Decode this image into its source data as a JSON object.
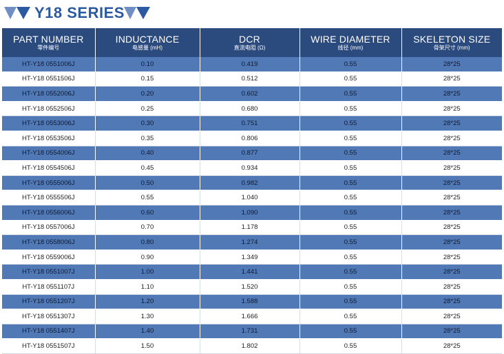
{
  "header": {
    "title": "Y18 SERIES"
  },
  "colors": {
    "accent": "#2c5aa0",
    "header_bg": "#2b4a7e",
    "row_blue": "#5179b5"
  },
  "table": {
    "columns": [
      {
        "en": "PART NUMBER",
        "cn": "零件编号"
      },
      {
        "en": "INDUCTANCE",
        "cn": "电感量 (mH)"
      },
      {
        "en": "DCR",
        "cn": "直流电阻 (Ω)"
      },
      {
        "en": "WIRE DIAMETER",
        "cn": "线径 (mm)"
      },
      {
        "en": "SKELETON SIZE",
        "cn": "骨架尺寸 (mm)"
      }
    ],
    "rows": [
      [
        "HT-Y18 0551006J",
        "0.10",
        "0.419",
        "0.55",
        "28*25"
      ],
      [
        "HT-Y18 0551506J",
        "0.15",
        "0.512",
        "0.55",
        "28*25"
      ],
      [
        "HT-Y18 0552006J",
        "0.20",
        "0.602",
        "0.55",
        "28*25"
      ],
      [
        "HT-Y18 0552506J",
        "0.25",
        "0.680",
        "0.55",
        "28*25"
      ],
      [
        "HT-Y18 0553006J",
        "0.30",
        "0.751",
        "0.55",
        "28*25"
      ],
      [
        "HT-Y18 0553506J",
        "0.35",
        "0.806",
        "0.55",
        "28*25"
      ],
      [
        "HT-Y18 0554006J",
        "0.40",
        "0.877",
        "0.55",
        "28*25"
      ],
      [
        "HT-Y18 0554506J",
        "0.45",
        "0.934",
        "0.55",
        "28*25"
      ],
      [
        "HT-Y18 0555006J",
        "0.50",
        "0.982",
        "0.55",
        "28*25"
      ],
      [
        "HT-Y18 0555506J",
        "0.55",
        "1.040",
        "0.55",
        "28*25"
      ],
      [
        "HT-Y18 0556006J",
        "0.60",
        "1.090",
        "0.55",
        "28*25"
      ],
      [
        "HT-Y18 0557006J",
        "0.70",
        "1.178",
        "0.55",
        "28*25"
      ],
      [
        "HT-Y18 0558006J",
        "0.80",
        "1.274",
        "0.55",
        "28*25"
      ],
      [
        "HT-Y18 0559006J",
        "0.90",
        "1.349",
        "0.55",
        "28*25"
      ],
      [
        "HT-Y18 0551007J",
        "1.00",
        "1.441",
        "0.55",
        "28*25"
      ],
      [
        "HT-Y18 0551107J",
        "1.10",
        "1.520",
        "0.55",
        "28*25"
      ],
      [
        "HT-Y18 0551207J",
        "1.20",
        "1.588",
        "0.55",
        "28*25"
      ],
      [
        "HT-Y18 0551307J",
        "1.30",
        "1.666",
        "0.55",
        "28*25"
      ],
      [
        "HT-Y18 0551407J",
        "1.40",
        "1.731",
        "0.55",
        "28*25"
      ],
      [
        "HT-Y18 0551507J",
        "1.50",
        "1.802",
        "0.55",
        "28*25"
      ]
    ]
  }
}
